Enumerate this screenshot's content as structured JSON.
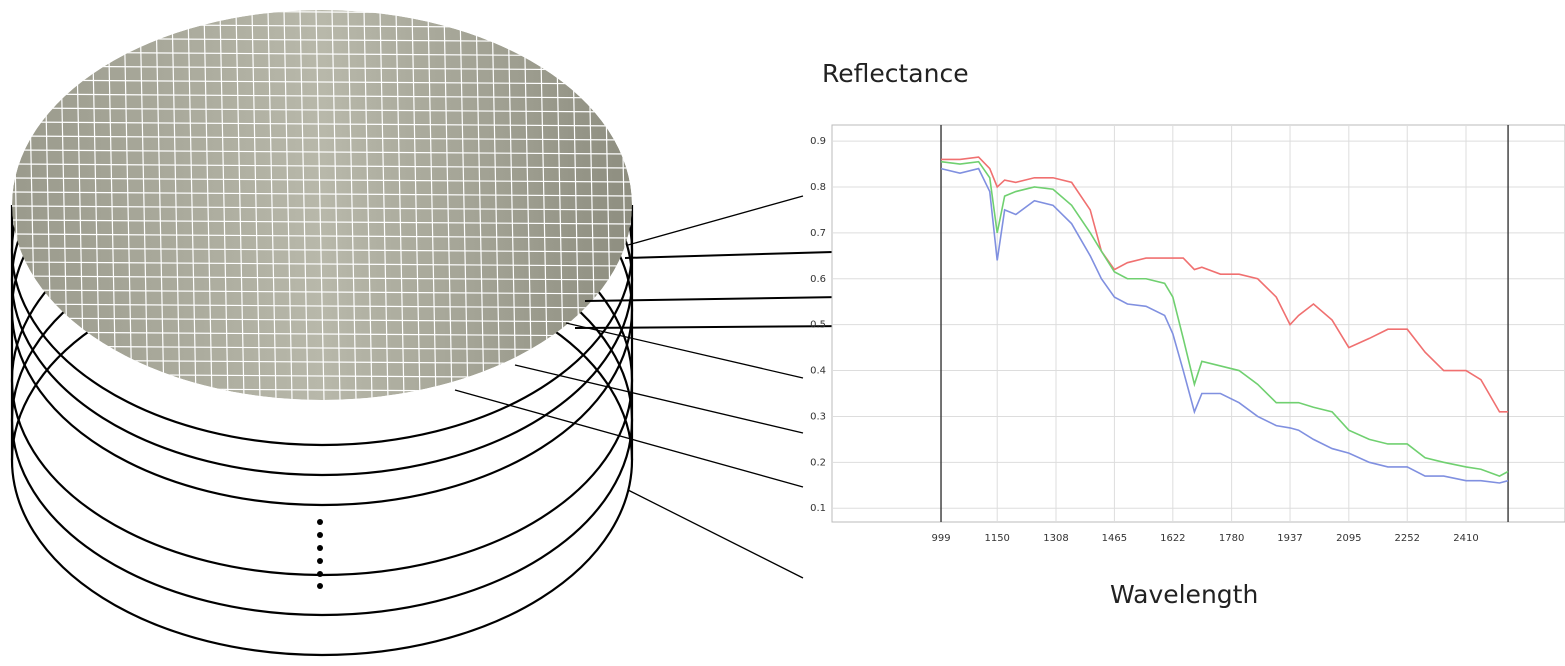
{
  "chart_data": {
    "type": "line",
    "y_label": "Reflectance",
    "x_label": "Wavelength",
    "x": [
      999,
      1050,
      1100,
      1130,
      1150,
      1170,
      1200,
      1250,
      1300,
      1350,
      1400,
      1430,
      1465,
      1500,
      1550,
      1600,
      1622,
      1650,
      1680,
      1700,
      1750,
      1800,
      1850,
      1900,
      1937,
      1960,
      2000,
      2050,
      2095,
      2150,
      2200,
      2252,
      2300,
      2350,
      2410,
      2450,
      2500,
      2523
    ],
    "series": [
      {
        "color": "#f07070",
        "values": [
          0.86,
          0.86,
          0.865,
          0.84,
          0.8,
          0.815,
          0.81,
          0.82,
          0.82,
          0.81,
          0.75,
          0.66,
          0.62,
          0.635,
          0.645,
          0.645,
          0.645,
          0.645,
          0.62,
          0.625,
          0.61,
          0.61,
          0.6,
          0.56,
          0.5,
          0.52,
          0.545,
          0.51,
          0.45,
          0.47,
          0.49,
          0.49,
          0.44,
          0.4,
          0.4,
          0.38,
          0.31,
          0.31
        ]
      },
      {
        "color": "#70d070",
        "values": [
          0.855,
          0.85,
          0.855,
          0.82,
          0.7,
          0.78,
          0.79,
          0.8,
          0.795,
          0.76,
          0.7,
          0.66,
          0.615,
          0.6,
          0.6,
          0.59,
          0.56,
          0.47,
          0.37,
          0.42,
          0.41,
          0.4,
          0.37,
          0.33,
          0.33,
          0.33,
          0.32,
          0.31,
          0.27,
          0.25,
          0.24,
          0.24,
          0.21,
          0.2,
          0.19,
          0.185,
          0.17,
          0.18
        ]
      },
      {
        "color": "#8090e0",
        "values": [
          0.84,
          0.83,
          0.84,
          0.79,
          0.64,
          0.75,
          0.74,
          0.77,
          0.76,
          0.72,
          0.65,
          0.6,
          0.56,
          0.545,
          0.54,
          0.52,
          0.48,
          0.4,
          0.31,
          0.35,
          0.35,
          0.33,
          0.3,
          0.28,
          0.275,
          0.27,
          0.25,
          0.23,
          0.22,
          0.2,
          0.19,
          0.19,
          0.17,
          0.17,
          0.16,
          0.16,
          0.155,
          0.16
        ]
      }
    ],
    "xlim": [
      706,
      2676
    ],
    "ylim": [
      0.07,
      0.935
    ],
    "xticks": [
      999,
      1150,
      1308,
      1465,
      1622,
      1780,
      1937,
      2095,
      2252,
      2410
    ],
    "yticks": [
      0.1,
      0.2,
      0.3,
      0.4,
      0.5,
      0.6,
      0.7,
      0.8,
      0.9
    ],
    "grid": true
  }
}
